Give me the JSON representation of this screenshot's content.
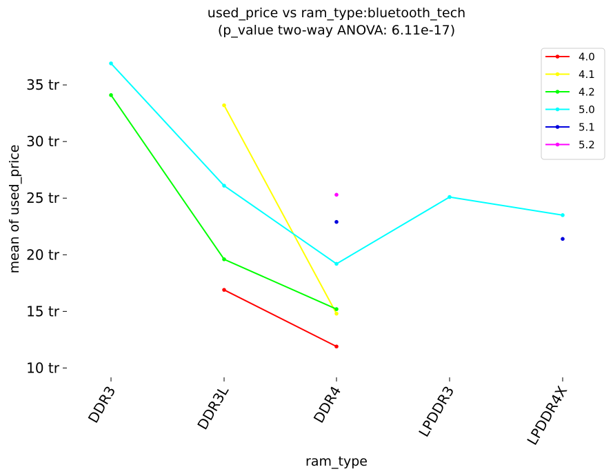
{
  "chart_data": {
    "type": "line",
    "title": "used_price vs ram_type:bluetooth_tech",
    "subtitle": "(p_value two-way ANOVA: 6.11e-17)",
    "xlabel": "ram_type",
    "ylabel": "mean of used_price",
    "categories": [
      "DDR3",
      "DDR3L",
      "DDR4",
      "LPDDR3",
      "LPDDR4X"
    ],
    "y_ticks": [
      {
        "value": 10,
        "label": "10 tr"
      },
      {
        "value": 15,
        "label": "15 tr"
      },
      {
        "value": 20,
        "label": "20 tr"
      },
      {
        "value": 25,
        "label": "25 tr"
      },
      {
        "value": 30,
        "label": "30 tr"
      },
      {
        "value": 35,
        "label": "35 tr"
      }
    ],
    "ylim": [
      9.6,
      38.6
    ],
    "grid": false,
    "legend_position": "top-right",
    "series": [
      {
        "name": "4.0",
        "color": "#ff0000",
        "values": [
          null,
          16.9,
          11.9,
          null,
          null
        ]
      },
      {
        "name": "4.1",
        "color": "#ffff00",
        "values": [
          null,
          33.2,
          14.8,
          null,
          null
        ]
      },
      {
        "name": "4.2",
        "color": "#00ff00",
        "values": [
          34.1,
          19.6,
          15.2,
          null,
          null
        ]
      },
      {
        "name": "5.0",
        "color": "#00ffff",
        "values": [
          36.9,
          26.1,
          19.2,
          25.1,
          23.5
        ]
      },
      {
        "name": "5.1",
        "color": "#0000dd",
        "values": [
          null,
          null,
          22.9,
          null,
          21.4
        ]
      },
      {
        "name": "5.2",
        "color": "#ff00ff",
        "values": [
          null,
          null,
          25.3,
          null,
          null
        ]
      }
    ]
  }
}
